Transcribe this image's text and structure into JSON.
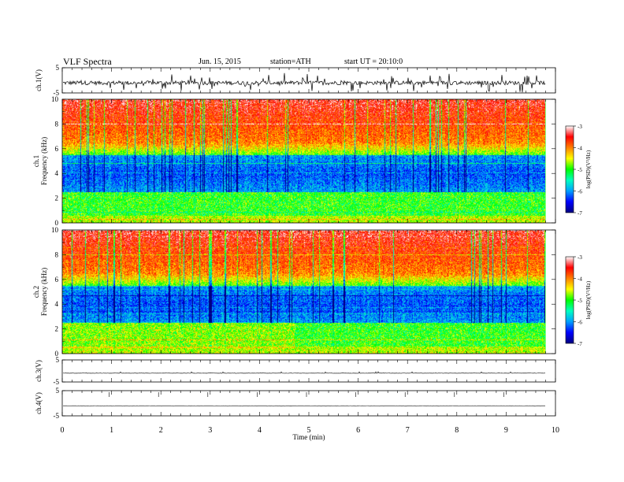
{
  "header": {
    "title": "VLF  Spectra",
    "date": "Jun. 15, 2015",
    "station": "station=ATH",
    "start_ut": "start  UT  =   20:10:0"
  },
  "chart_data": {
    "type": "heatmap",
    "x": {
      "label": "Time  (min)",
      "range": [
        0,
        10
      ],
      "ticks": [
        "0",
        "1",
        "2",
        "3",
        "4",
        "5",
        "6",
        "7",
        "8",
        "9",
        "10"
      ],
      "data_end": 9.8
    },
    "panels": [
      {
        "id": "ch1v",
        "type": "line",
        "ylabel": "ch.1(V)",
        "ylim": [
          -5,
          5
        ],
        "ticks": [
          "5",
          "-5"
        ],
        "trace": "broadband noisy waveform about -1 V"
      },
      {
        "id": "ch1spec",
        "type": "heatmap",
        "ylabel": "Frequency  (kHz)",
        "ylabel2": "ch.1",
        "ylim": [
          0,
          10
        ],
        "ticks": [
          "0",
          "2",
          "4",
          "6",
          "8",
          "10"
        ],
        "low_psd_band_khz": [
          2.5,
          5.5
        ]
      },
      {
        "id": "ch2spec",
        "type": "heatmap",
        "ylabel": "Frequency  (kHz)",
        "ylabel2": "ch.2",
        "ylim": [
          0,
          10
        ],
        "ticks": [
          "0",
          "2",
          "4",
          "6",
          "8",
          "10"
        ],
        "low_psd_band_khz": [
          2.5,
          5.5
        ],
        "step_at_min": 4.7
      },
      {
        "id": "ch3v",
        "type": "line",
        "ylabel": "ch.3(V)",
        "ylim": [
          -5,
          5
        ],
        "ticks": [
          "5",
          "-5"
        ],
        "trace": "near-flat at about -1 V"
      },
      {
        "id": "ch4v",
        "type": "line",
        "ylabel": "ch.4(V)",
        "ylim": [
          -5,
          5
        ],
        "ticks": [
          "5",
          "-5"
        ],
        "trace": "flat at about -1 V"
      }
    ],
    "colorbar": {
      "label": "log(PSD)(V²/Hz)",
      "range": [
        -7,
        -3
      ],
      "ticks": [
        "-3",
        "-4",
        "-5",
        "-6",
        "-7"
      ],
      "stops": [
        "#000080",
        "#0000ff",
        "#00a0ff",
        "#00ffc0",
        "#00ff00",
        "#ffff00",
        "#ff8000",
        "#ff0000",
        "#ffffff"
      ]
    },
    "grid": false,
    "legend": "colorbar-right"
  }
}
